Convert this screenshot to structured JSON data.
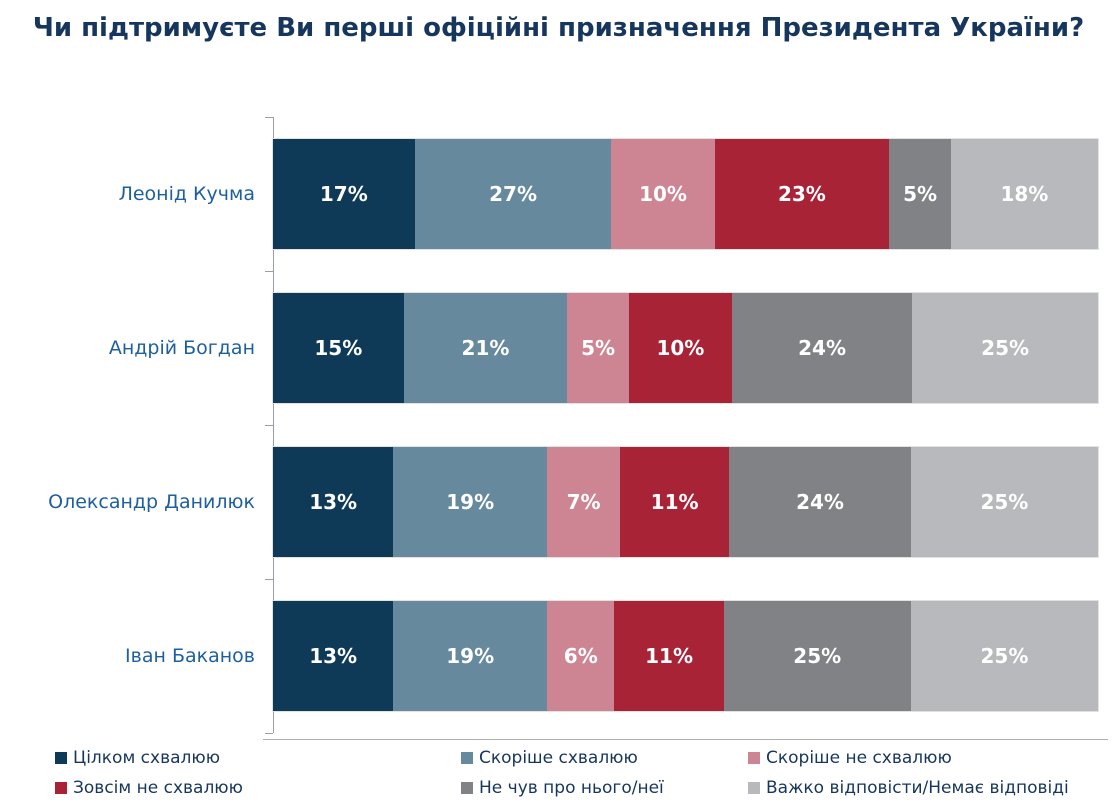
{
  "colors": {
    "background": "#FFFFFF",
    "title_text": "#17365D",
    "category_label_text": "#1E5F9E",
    "legend_text": "#17365D",
    "data_label_text": "#FFFFFF",
    "axis_line": "#98A0A6"
  },
  "chart_data": {
    "type": "bar",
    "variant": "horizontal-stacked",
    "title": "Чи підтримуєте Ви перші офіційні призначення Президента України?",
    "categories": [
      "Леонід Кучма",
      "Андрій Богдан",
      "Олександр Данилюк",
      "Іван Баканов"
    ],
    "series": [
      {
        "name": "Цілком схвалюю",
        "color": "#0E3A58",
        "values": [
          17,
          15,
          13,
          13
        ]
      },
      {
        "name": "Скоріше схвалюю",
        "color": "#66899D",
        "values": [
          27,
          21,
          19,
          19
        ]
      },
      {
        "name": "Скоріше не схвалюю",
        "color": "#CE8593",
        "values": [
          10,
          5,
          7,
          6
        ]
      },
      {
        "name": "Зовсім не схвалюю",
        "color": "#A92337",
        "values": [
          23,
          10,
          11,
          11
        ]
      },
      {
        "name": "Не чув про нього/неї",
        "color": "#808285",
        "values": [
          5,
          24,
          24,
          25
        ]
      },
      {
        "name": "Важко відповісти/Немає відповіді",
        "color": "#B7B9BC",
        "values": [
          18,
          25,
          25,
          25
        ]
      }
    ],
    "value_suffix": "%",
    "xlim": [
      0,
      100
    ],
    "data_labels": "inside-center",
    "legend_position": "bottom",
    "grid": false,
    "value_axis_tick_labels_visible": false
  }
}
